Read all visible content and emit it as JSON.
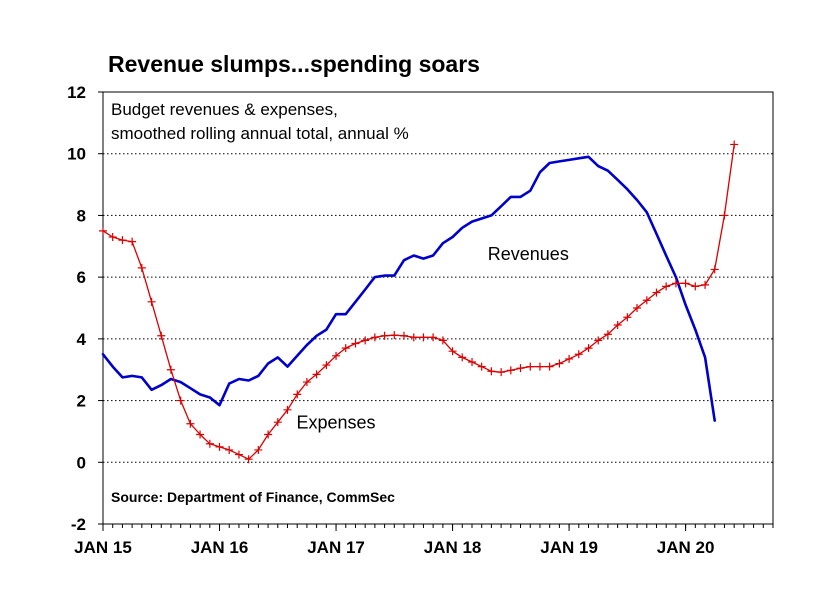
{
  "chart_data": {
    "type": "line",
    "title": "Revenue slumps...spending soars",
    "subtitle": [
      "Budget revenues & expenses,",
      "smoothed rolling annual total, annual %"
    ],
    "source": "Source: Department of Finance, CommSec",
    "xlabel": "",
    "ylabel": "",
    "x_ticks": [
      "JAN 15",
      "JAN 16",
      "JAN 17",
      "JAN 18",
      "JAN 19",
      "JAN 20"
    ],
    "x_tick_values": [
      2015.0,
      2016.0,
      2017.0,
      2018.0,
      2019.0,
      2020.0
    ],
    "xlim": [
      2015.0,
      2020.75
    ],
    "y_ticks": [
      -2,
      0,
      2,
      4,
      6,
      8,
      10,
      12
    ],
    "ylim": [
      -2,
      12
    ],
    "grid": "horizontal dotted",
    "series": [
      {
        "name": "Revenues",
        "color": "#0000cc",
        "marker": "none",
        "x": [
          2015.0,
          2015.083,
          2015.167,
          2015.25,
          2015.333,
          2015.417,
          2015.5,
          2015.583,
          2015.667,
          2015.75,
          2015.833,
          2015.917,
          2016.0,
          2016.083,
          2016.167,
          2016.25,
          2016.333,
          2016.417,
          2016.5,
          2016.583,
          2016.667,
          2016.75,
          2016.833,
          2016.917,
          2017.0,
          2017.083,
          2017.167,
          2017.25,
          2017.333,
          2017.417,
          2017.5,
          2017.583,
          2017.667,
          2017.75,
          2017.833,
          2017.917,
          2018.0,
          2018.083,
          2018.167,
          2018.25,
          2018.333,
          2018.417,
          2018.5,
          2018.583,
          2018.667,
          2018.75,
          2018.833,
          2018.917,
          2019.0,
          2019.083,
          2019.167,
          2019.25,
          2019.333,
          2019.417,
          2019.5,
          2019.583,
          2019.667,
          2019.75,
          2019.833,
          2019.917,
          2020.0,
          2020.083,
          2020.167,
          2020.25
        ],
        "values": [
          3.5,
          3.1,
          2.75,
          2.8,
          2.75,
          2.35,
          2.5,
          2.7,
          2.6,
          2.4,
          2.2,
          2.1,
          1.85,
          2.55,
          2.7,
          2.65,
          2.8,
          3.2,
          3.4,
          3.1,
          3.45,
          3.8,
          4.1,
          4.3,
          4.8,
          4.8,
          5.2,
          5.6,
          6.0,
          6.05,
          6.05,
          6.55,
          6.7,
          6.6,
          6.7,
          7.1,
          7.3,
          7.6,
          7.8,
          7.9,
          8.0,
          8.3,
          8.6,
          8.6,
          8.8,
          9.4,
          9.7,
          9.75,
          9.8,
          9.85,
          9.9,
          9.6,
          9.45,
          9.15,
          8.85,
          8.5,
          8.1,
          7.4,
          6.7,
          6.0,
          5.1,
          4.3,
          3.4,
          1.35
        ]
      },
      {
        "name": "Expenses",
        "color": "#dd0000",
        "marker": "plus",
        "x": [
          2015.0,
          2015.083,
          2015.167,
          2015.25,
          2015.333,
          2015.417,
          2015.5,
          2015.583,
          2015.667,
          2015.75,
          2015.833,
          2015.917,
          2016.0,
          2016.083,
          2016.167,
          2016.25,
          2016.333,
          2016.417,
          2016.5,
          2016.583,
          2016.667,
          2016.75,
          2016.833,
          2016.917,
          2017.0,
          2017.083,
          2017.167,
          2017.25,
          2017.333,
          2017.417,
          2017.5,
          2017.583,
          2017.667,
          2017.75,
          2017.833,
          2017.917,
          2018.0,
          2018.083,
          2018.167,
          2018.25,
          2018.333,
          2018.417,
          2018.5,
          2018.583,
          2018.667,
          2018.75,
          2018.833,
          2018.917,
          2019.0,
          2019.083,
          2019.167,
          2019.25,
          2019.333,
          2019.417,
          2019.5,
          2019.583,
          2019.667,
          2019.75,
          2019.833,
          2019.917,
          2020.0,
          2020.083,
          2020.167,
          2020.25,
          2020.333,
          2020.417
        ],
        "values": [
          7.5,
          7.3,
          7.2,
          7.15,
          6.3,
          5.2,
          4.1,
          3.0,
          2.0,
          1.25,
          0.9,
          0.6,
          0.5,
          0.4,
          0.25,
          0.1,
          0.4,
          0.9,
          1.3,
          1.7,
          2.2,
          2.6,
          2.85,
          3.15,
          3.45,
          3.7,
          3.85,
          3.95,
          4.05,
          4.1,
          4.12,
          4.1,
          4.05,
          4.05,
          4.05,
          3.95,
          3.6,
          3.4,
          3.25,
          3.1,
          2.95,
          2.92,
          2.98,
          3.05,
          3.1,
          3.1,
          3.1,
          3.2,
          3.35,
          3.5,
          3.7,
          3.95,
          4.15,
          4.45,
          4.7,
          5.0,
          5.25,
          5.5,
          5.7,
          5.8,
          5.8,
          5.7,
          5.75,
          6.25,
          8.0,
          10.3
        ]
      }
    ],
    "annotations": [
      {
        "text": "Revenues",
        "x": 2018.65,
        "y": 6.55
      },
      {
        "text": "Expenses",
        "x": 2017.0,
        "y": 1.1
      }
    ]
  }
}
